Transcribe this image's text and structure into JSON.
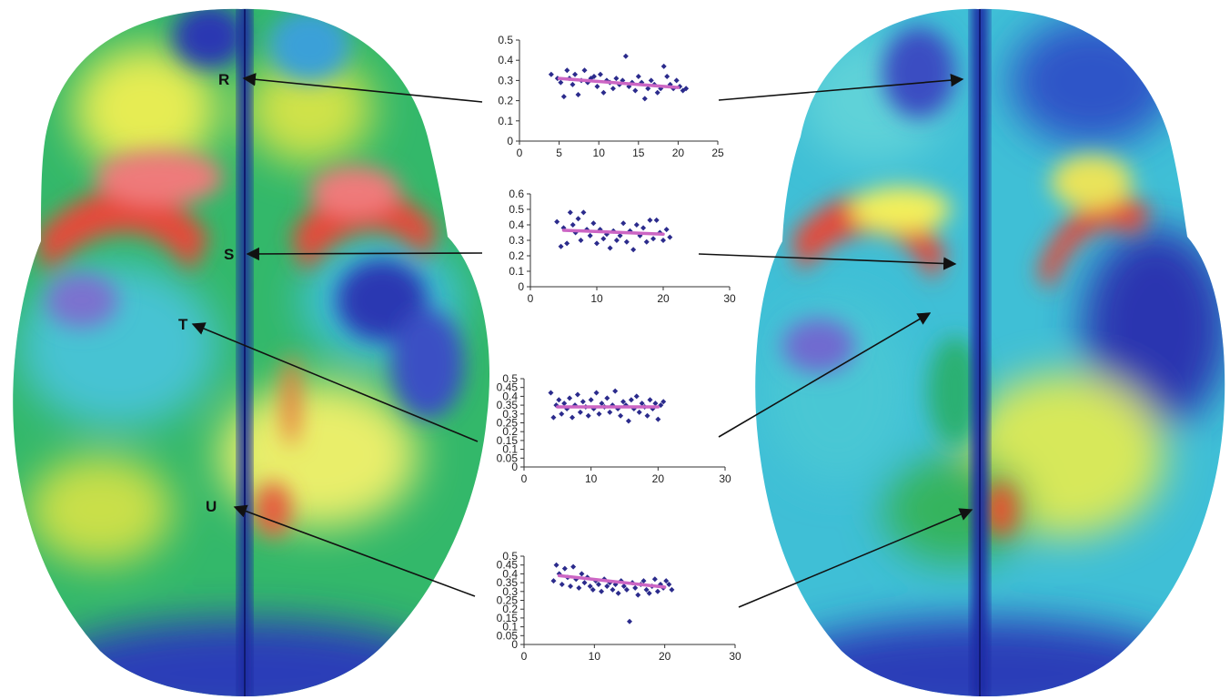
{
  "region_labels": [
    "R",
    "S",
    "T",
    "U"
  ],
  "colors": {
    "scatter_point": "#2b2b8c",
    "trend_line": "#cc66c4",
    "axis": "#333333",
    "arrow": "#111111",
    "brain_palette": [
      "#1f2aa8",
      "#2f6fd6",
      "#34c6d8",
      "#2fb35a",
      "#cfe04a",
      "#f1f25a",
      "#e8453c"
    ]
  },
  "chart_data": [
    {
      "type": "scatter",
      "region": "R",
      "xlim": [
        0,
        25
      ],
      "ylim": [
        0,
        0.5
      ],
      "xticks": [
        0,
        5,
        10,
        15,
        20,
        25
      ],
      "yticks": [
        0,
        0.1,
        0.2,
        0.3,
        0.4,
        0.5
      ],
      "x": [
        4.0,
        4.8,
        5.2,
        5.6,
        6.0,
        6.3,
        6.7,
        7.0,
        7.4,
        7.8,
        8.2,
        8.6,
        9.0,
        9.4,
        9.8,
        10.2,
        10.6,
        11.0,
        11.4,
        11.8,
        12.2,
        12.6,
        13.0,
        13.4,
        13.8,
        14.2,
        14.6,
        15.0,
        15.4,
        15.8,
        16.2,
        16.6,
        17.0,
        17.4,
        17.8,
        18.2,
        18.6,
        19.0,
        19.4,
        19.8,
        20.2,
        20.6,
        21.0
      ],
      "y": [
        0.33,
        0.31,
        0.29,
        0.22,
        0.35,
        0.31,
        0.28,
        0.33,
        0.23,
        0.3,
        0.35,
        0.29,
        0.31,
        0.32,
        0.27,
        0.33,
        0.24,
        0.3,
        0.29,
        0.26,
        0.31,
        0.28,
        0.3,
        0.42,
        0.27,
        0.29,
        0.25,
        0.32,
        0.29,
        0.21,
        0.26,
        0.3,
        0.28,
        0.24,
        0.26,
        0.37,
        0.32,
        0.28,
        0.26,
        0.3,
        0.27,
        0.25,
        0.26
      ],
      "trend": {
        "x": [
          5,
          20
        ],
        "y": [
          0.31,
          0.265
        ]
      }
    },
    {
      "type": "scatter",
      "region": "S",
      "xlim": [
        0,
        30
      ],
      "ylim": [
        0,
        0.6
      ],
      "xticks": [
        0,
        10,
        20,
        30
      ],
      "yticks": [
        0,
        0.1,
        0.2,
        0.3,
        0.4,
        0.5,
        0.6
      ],
      "x": [
        4.0,
        4.6,
        5.0,
        5.5,
        6.0,
        6.4,
        6.8,
        7.2,
        7.6,
        8.0,
        8.5,
        9.0,
        9.5,
        10.0,
        10.5,
        11.0,
        11.5,
        12.0,
        12.5,
        13.0,
        13.5,
        14.0,
        14.5,
        15.0,
        15.5,
        16.0,
        16.5,
        17.0,
        17.5,
        18.0,
        18.5,
        19.0,
        19.5,
        20.0,
        20.5,
        21.0
      ],
      "y": [
        0.42,
        0.26,
        0.38,
        0.28,
        0.48,
        0.4,
        0.35,
        0.44,
        0.3,
        0.48,
        0.37,
        0.33,
        0.41,
        0.28,
        0.37,
        0.31,
        0.34,
        0.25,
        0.36,
        0.3,
        0.33,
        0.41,
        0.29,
        0.36,
        0.24,
        0.4,
        0.33,
        0.38,
        0.29,
        0.43,
        0.31,
        0.43,
        0.35,
        0.3,
        0.37,
        0.32
      ],
      "trend": {
        "x": [
          5,
          20
        ],
        "y": [
          0.365,
          0.34
        ]
      }
    },
    {
      "type": "scatter",
      "region": "T",
      "xlim": [
        0,
        30
      ],
      "ylim": [
        0,
        0.5
      ],
      "xticks": [
        0,
        10,
        20,
        30
      ],
      "yticks": [
        0,
        0.05,
        0.1,
        0.15,
        0.2,
        0.25,
        0.3,
        0.35,
        0.4,
        0.45,
        0.5
      ],
      "x": [
        4.0,
        4.4,
        4.8,
        5.2,
        5.6,
        6.0,
        6.4,
        6.8,
        7.2,
        7.6,
        8.0,
        8.4,
        8.8,
        9.2,
        9.6,
        10.0,
        10.4,
        10.8,
        11.2,
        11.6,
        12.0,
        12.4,
        12.8,
        13.2,
        13.6,
        14.0,
        14.4,
        14.8,
        15.2,
        15.6,
        16.0,
        16.4,
        16.8,
        17.2,
        17.6,
        18.0,
        18.4,
        18.8,
        19.2,
        19.6,
        20.0,
        20.4,
        20.8
      ],
      "y": [
        0.42,
        0.28,
        0.35,
        0.38,
        0.3,
        0.36,
        0.33,
        0.39,
        0.28,
        0.35,
        0.41,
        0.31,
        0.37,
        0.34,
        0.29,
        0.38,
        0.33,
        0.42,
        0.3,
        0.36,
        0.34,
        0.39,
        0.31,
        0.35,
        0.43,
        0.33,
        0.29,
        0.37,
        0.35,
        0.26,
        0.38,
        0.33,
        0.4,
        0.31,
        0.36,
        0.34,
        0.29,
        0.38,
        0.33,
        0.36,
        0.27,
        0.35,
        0.37
      ],
      "trend": {
        "x": [
          5,
          20
        ],
        "y": [
          0.34,
          0.34
        ]
      }
    },
    {
      "type": "scatter",
      "region": "U",
      "xlim": [
        0,
        30
      ],
      "ylim": [
        0,
        0.5
      ],
      "xticks": [
        0,
        10,
        20,
        30
      ],
      "yticks": [
        0,
        0.05,
        0.1,
        0.15,
        0.2,
        0.25,
        0.3,
        0.35,
        0.4,
        0.45,
        0.5
      ],
      "x": [
        4.2,
        4.6,
        5.0,
        5.4,
        5.8,
        6.2,
        6.6,
        7.0,
        7.4,
        7.8,
        8.2,
        8.6,
        9.0,
        9.4,
        9.8,
        10.2,
        10.6,
        11.0,
        11.4,
        11.8,
        12.2,
        12.6,
        13.0,
        13.4,
        13.8,
        14.2,
        14.6,
        15.0,
        15.4,
        15.8,
        16.2,
        16.6,
        17.0,
        17.4,
        17.8,
        18.2,
        18.6,
        19.0,
        19.4,
        19.8,
        20.2,
        20.6,
        21.0
      ],
      "y": [
        0.36,
        0.45,
        0.4,
        0.34,
        0.43,
        0.38,
        0.33,
        0.44,
        0.37,
        0.32,
        0.4,
        0.35,
        0.38,
        0.33,
        0.31,
        0.36,
        0.34,
        0.3,
        0.37,
        0.33,
        0.35,
        0.31,
        0.34,
        0.29,
        0.36,
        0.33,
        0.31,
        0.13,
        0.35,
        0.32,
        0.28,
        0.34,
        0.36,
        0.31,
        0.29,
        0.33,
        0.37,
        0.3,
        0.34,
        0.32,
        0.36,
        0.34,
        0.31
      ],
      "trend": {
        "x": [
          5,
          20
        ],
        "y": [
          0.39,
          0.325
        ]
      }
    }
  ]
}
